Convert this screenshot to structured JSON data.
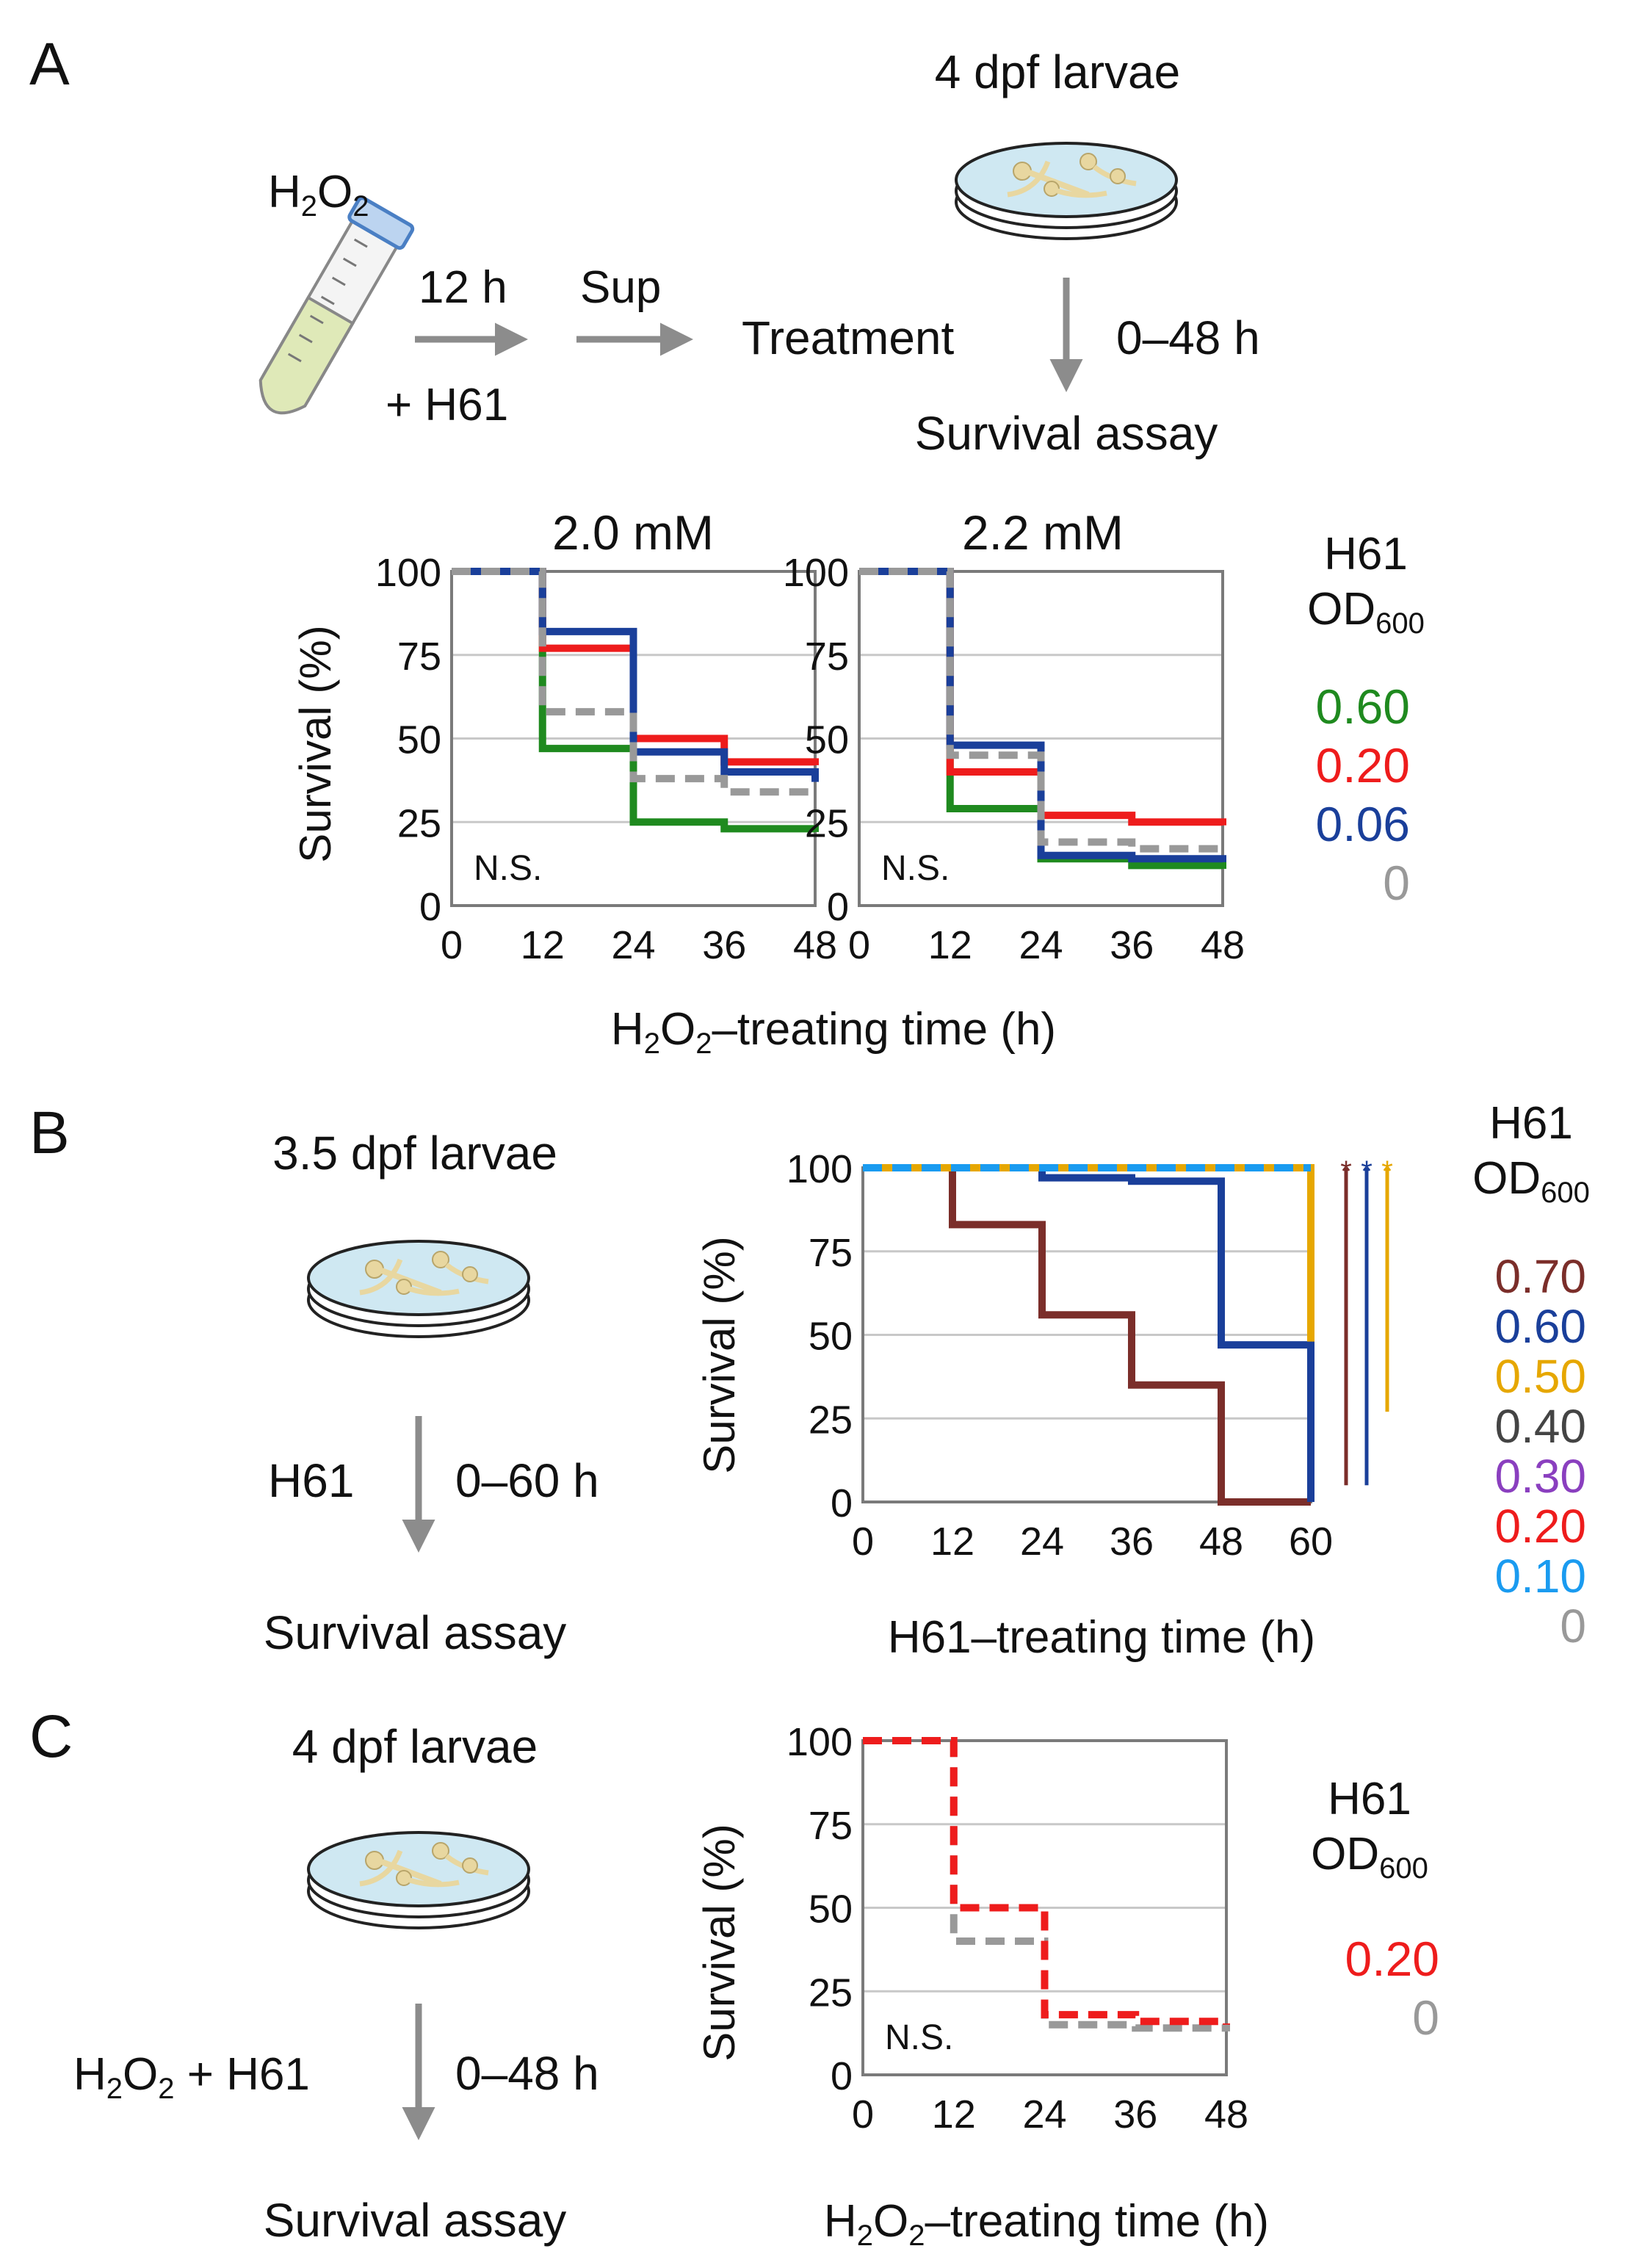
{
  "colors": {
    "h61_070": "#7b2e2a",
    "h61_060_A": "#1f8a1f",
    "h61_060_B": "#1a3f9a",
    "h61_050": "#e6a700",
    "h61_040": "#444444",
    "h61_030": "#8a3fbf",
    "h61_020": "#ee1c1c",
    "h61_010": "#1a9bf0",
    "h61_006": "#1a3f9a",
    "h61_000": "#999999"
  },
  "panels": {
    "A": {
      "label": "A",
      "larvae": "4 dpf larvae",
      "reagent": "H",
      "reagent_sub": "2",
      "reagent_tail": "O",
      "reagent_sub2": "2",
      "step_time": "12 h",
      "step_sup": "Sup",
      "plus_h61": "+ H61",
      "treatment": "Treatment",
      "duration": "0–48 h",
      "assay": "Survival assay",
      "xlabel_pre": "H",
      "xlabel_sub": "2",
      "xlabel_mid": "O",
      "xlabel_sub2": "2",
      "xlabel_post": "–treating time (h)",
      "ylabel": "Survival (%)",
      "legend_title_1": "H61",
      "legend_title_2": "OD",
      "legend_title_sub": "600",
      "legend_values": [
        "0.60",
        "0.20",
        "0.06",
        "0"
      ]
    },
    "B": {
      "label": "B",
      "larvae": "3.5 dpf larvae",
      "reagent": "H61",
      "duration": "0–60 h",
      "assay": "Survival assay",
      "xlabel": "H61–treating time (h)",
      "ylabel": "Survival (%)",
      "legend_title_1": "H61",
      "legend_title_2": "OD",
      "legend_title_sub": "600",
      "legend_values": [
        "0.70",
        "0.60",
        "0.50",
        "0.40",
        "0.30",
        "0.20",
        "0.10",
        "0"
      ],
      "sig_marks": [
        "*",
        "*",
        "*"
      ]
    },
    "C": {
      "label": "C",
      "larvae": "4 dpf larvae",
      "reagent_pre": "H",
      "reagent_sub": "2",
      "reagent_mid": "O",
      "reagent_sub2": "2",
      "reagent_post": " + H61",
      "duration": "0–48 h",
      "assay": "Survival assay",
      "xlabel_pre": "H",
      "xlabel_sub": "2",
      "xlabel_mid": "O",
      "xlabel_sub2": "2",
      "xlabel_post": "–treating time (h)",
      "ylabel": "Survival (%)",
      "legend_title_1": "H61",
      "legend_title_2": "OD",
      "legend_title_sub": "600",
      "legend_values": [
        "0.20",
        "0"
      ]
    }
  },
  "chart_data": [
    {
      "id": "A1",
      "type": "line",
      "step": true,
      "title": "2.0 mM",
      "annotation": "N.S.",
      "xlabel": "H2O2–treating time (h)",
      "ylabel": "Survival (%)",
      "xlim": [
        0,
        48
      ],
      "ylim": [
        0,
        100
      ],
      "xticks": [
        0,
        12,
        24,
        36,
        48
      ],
      "yticks": [
        0,
        25,
        50,
        75,
        100
      ],
      "series": [
        {
          "name": "0.60",
          "color": "#1f8a1f",
          "x": [
            0,
            12,
            24,
            36,
            48
          ],
          "values": [
            100,
            47,
            25,
            23,
            22
          ]
        },
        {
          "name": "0.20",
          "color": "#ee1c1c",
          "x": [
            0,
            12,
            24,
            36,
            48
          ],
          "values": [
            100,
            77,
            50,
            43,
            42
          ]
        },
        {
          "name": "0.06",
          "color": "#1a3f9a",
          "x": [
            0,
            12,
            24,
            36,
            48
          ],
          "values": [
            100,
            82,
            46,
            40,
            37
          ]
        },
        {
          "name": "0",
          "color": "#999999",
          "dashed": true,
          "x": [
            0,
            12,
            24,
            36,
            48
          ],
          "values": [
            100,
            58,
            38,
            34,
            33
          ]
        }
      ]
    },
    {
      "id": "A2",
      "type": "line",
      "step": true,
      "title": "2.2 mM",
      "annotation": "N.S.",
      "xlabel": "H2O2–treating time (h)",
      "ylabel": "Survival (%)",
      "xlim": [
        0,
        48
      ],
      "ylim": [
        0,
        100
      ],
      "xticks": [
        0,
        12,
        24,
        36,
        48
      ],
      "yticks": [
        0,
        25,
        50,
        75,
        100
      ],
      "series": [
        {
          "name": "0.60",
          "color": "#1f8a1f",
          "x": [
            0,
            12,
            24,
            36,
            48
          ],
          "values": [
            100,
            29,
            14,
            12,
            11
          ]
        },
        {
          "name": "0.20",
          "color": "#ee1c1c",
          "x": [
            0,
            12,
            24,
            36,
            48
          ],
          "values": [
            100,
            40,
            27,
            25,
            24
          ]
        },
        {
          "name": "0.06",
          "color": "#1a3f9a",
          "x": [
            0,
            12,
            24,
            36,
            48
          ],
          "values": [
            100,
            48,
            15,
            14,
            13
          ]
        },
        {
          "name": "0",
          "color": "#999999",
          "dashed": true,
          "x": [
            0,
            12,
            24,
            36,
            48
          ],
          "values": [
            100,
            45,
            19,
            17,
            16
          ]
        }
      ]
    },
    {
      "id": "B",
      "type": "line",
      "step": true,
      "title": "",
      "xlabel": "H61–treating time (h)",
      "ylabel": "Survival (%)",
      "xlim": [
        0,
        60
      ],
      "ylim": [
        0,
        100
      ],
      "xticks": [
        0,
        12,
        24,
        36,
        48,
        60
      ],
      "yticks": [
        0,
        25,
        50,
        75,
        100
      ],
      "series": [
        {
          "name": "0",
          "color": "#999999",
          "x": [
            0,
            60
          ],
          "values": [
            100,
            100
          ]
        },
        {
          "name": "0.70",
          "color": "#7b2e2a",
          "x": [
            0,
            12,
            24,
            36,
            48,
            60
          ],
          "values": [
            100,
            83,
            56,
            35,
            0,
            0
          ]
        },
        {
          "name": "0.60",
          "color": "#1a3f9a",
          "x": [
            0,
            12,
            24,
            36,
            48,
            60
          ],
          "values": [
            100,
            100,
            97,
            96,
            47,
            0
          ]
        },
        {
          "name": "0.50",
          "color": "#e6a700",
          "x": [
            0,
            59,
            60
          ],
          "values": [
            100,
            100,
            48
          ]
        },
        {
          "name": "0.10",
          "color": "#1a9bf0",
          "dashed": true,
          "x": [
            0,
            60
          ],
          "values": [
            100,
            100
          ]
        }
      ],
      "significance": [
        {
          "color": "#7b2e2a",
          "from": 100,
          "to": 5
        },
        {
          "color": "#1a3f9a",
          "from": 100,
          "to": 5
        },
        {
          "color": "#e6a700",
          "from": 100,
          "to": 27
        }
      ]
    },
    {
      "id": "C",
      "type": "line",
      "step": true,
      "title": "",
      "annotation": "N.S.",
      "xlabel": "H2O2–treating time (h)",
      "ylabel": "Survival (%)",
      "xlim": [
        0,
        48
      ],
      "ylim": [
        0,
        100
      ],
      "xticks": [
        0,
        12,
        24,
        36,
        48
      ],
      "yticks": [
        0,
        25,
        50,
        75,
        100
      ],
      "series": [
        {
          "name": "0",
          "color": "#999999",
          "dashed": true,
          "x": [
            0,
            12,
            24,
            36,
            48
          ],
          "values": [
            100,
            40,
            15,
            14,
            13
          ]
        },
        {
          "name": "0.20",
          "color": "#ee1c1c",
          "dashed": true,
          "x": [
            0,
            12,
            24,
            36,
            48
          ],
          "values": [
            100,
            50,
            18,
            16,
            15
          ]
        }
      ]
    }
  ]
}
